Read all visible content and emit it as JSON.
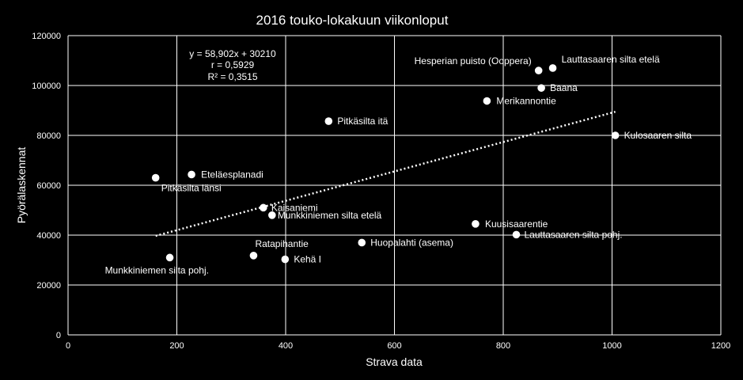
{
  "chart_data": {
    "type": "scatter",
    "title": "2016 touko-lokakuun viikonloput",
    "xlabel": "Strava data",
    "ylabel": "Pyörälaskennat",
    "xlim": [
      0,
      1200
    ],
    "ylim": [
      0,
      120000
    ],
    "xticks": [
      "0",
      "200",
      "400",
      "600",
      "800",
      "1000",
      "1200"
    ],
    "yticks": [
      "0",
      "20000",
      "40000",
      "60000",
      "80000",
      "100000",
      "120000"
    ],
    "grid": true,
    "legend": "none",
    "colors": {
      "background": "#000000",
      "points": "#ffffff",
      "grid": "#ffffff",
      "trendline": "#ffffff"
    },
    "points": [
      {
        "label": "Pitkäsilta länsi",
        "x": 161,
        "y": 63000
      },
      {
        "label": "Eteläesplanadi",
        "x": 227,
        "y": 64300
      },
      {
        "label": "Munkkiniemen silta pohj.",
        "x": 187,
        "y": 31000
      },
      {
        "label": "Kaisaniemi",
        "x": 359,
        "y": 51000
      },
      {
        "label": "Munkkiniemen silta etelä",
        "x": 375,
        "y": 48000
      },
      {
        "label": "Ratapihantie",
        "x": 341,
        "y": 31800
      },
      {
        "label": "Kehä I",
        "x": 399,
        "y": 30300
      },
      {
        "label": "Pitkäsilta itä",
        "x": 479,
        "y": 85700
      },
      {
        "label": "Huopalahti (asema)",
        "x": 540,
        "y": 37000
      },
      {
        "label": "Kuusisaarentie",
        "x": 749,
        "y": 44500
      },
      {
        "label": "Lauttasaaren silta pohj.",
        "x": 824,
        "y": 40200
      },
      {
        "label": "Merikannontie",
        "x": 770,
        "y": 93800
      },
      {
        "label": "Hesperian puisto (Ooppera)",
        "x": 865,
        "y": 106000
      },
      {
        "label": "Lauttasaaren silta etelä",
        "x": 891,
        "y": 107000
      },
      {
        "label": "Baana",
        "x": 870,
        "y": 99000
      },
      {
        "label": "Kulosaaren silta",
        "x": 1006,
        "y": 80000
      }
    ],
    "trendline": {
      "x_start": 161,
      "x_end": 1006
    },
    "annotation": [
      "y = 58,902x + 30210",
      "r = 0,5929",
      "R² = 0,3515"
    ]
  }
}
